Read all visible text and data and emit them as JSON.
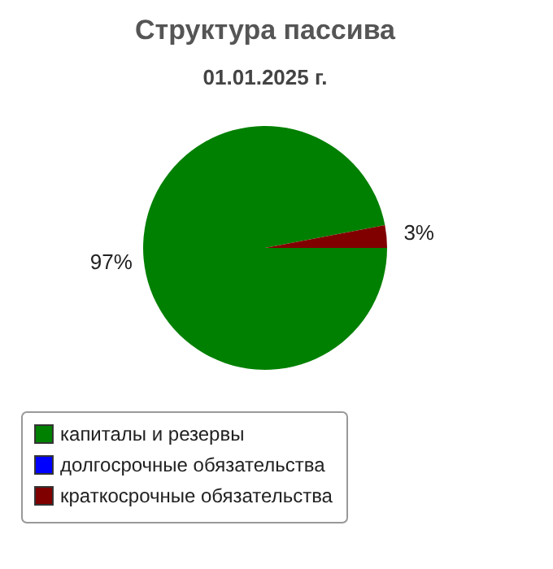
{
  "chart_data": {
    "type": "pie",
    "title": "Структура пассива",
    "subtitle": "01.01.2025 г.",
    "categories": [
      "капиталы и резервы",
      "долгосрочные обязательства",
      "краткосрочные обязательства"
    ],
    "values": [
      97,
      0,
      3
    ],
    "colors": [
      "#008000",
      "#0000ff",
      "#800000"
    ],
    "value_labels": [
      "97%",
      null,
      "3%"
    ],
    "legend": "bottom"
  }
}
